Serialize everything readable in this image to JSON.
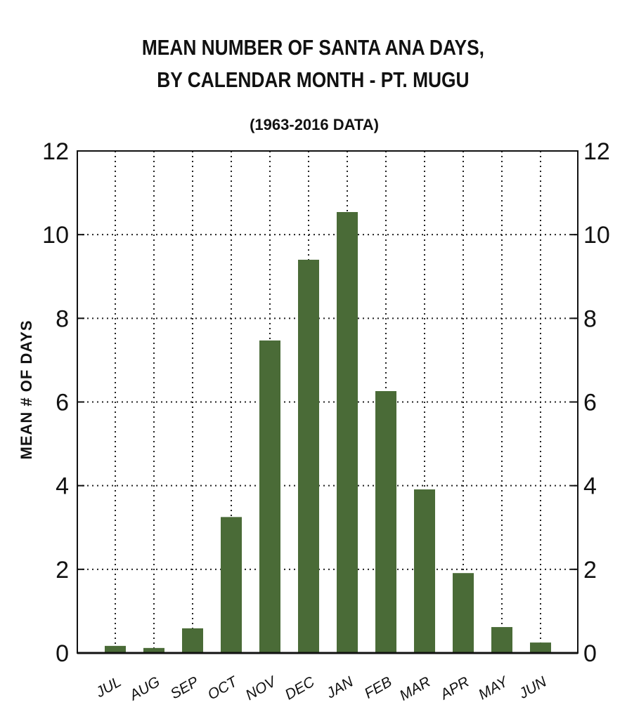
{
  "chart_data": {
    "type": "bar",
    "title": [
      "MEAN NUMBER OF SANTA ANA DAYS,",
      "BY CALENDAR MONTH - PT. MUGU"
    ],
    "subtitle": "(1963-2016 DATA)",
    "xlabel": "",
    "ylabel": "MEAN # OF DAYS",
    "categories": [
      "JUL",
      "AUG",
      "SEP",
      "OCT",
      "NOV",
      "DEC",
      "JAN",
      "FEB",
      "MAR",
      "APR",
      "MAY",
      "JUN"
    ],
    "values": [
      0.17,
      0.12,
      0.59,
      3.25,
      7.47,
      9.4,
      10.54,
      6.26,
      3.91,
      1.91,
      0.62,
      0.25
    ],
    "ylim": [
      0,
      12
    ],
    "yticks": [
      "0",
      "2",
      "4",
      "6",
      "8",
      "10",
      "12"
    ],
    "grid": true,
    "bar_color": "#4a6b37"
  }
}
